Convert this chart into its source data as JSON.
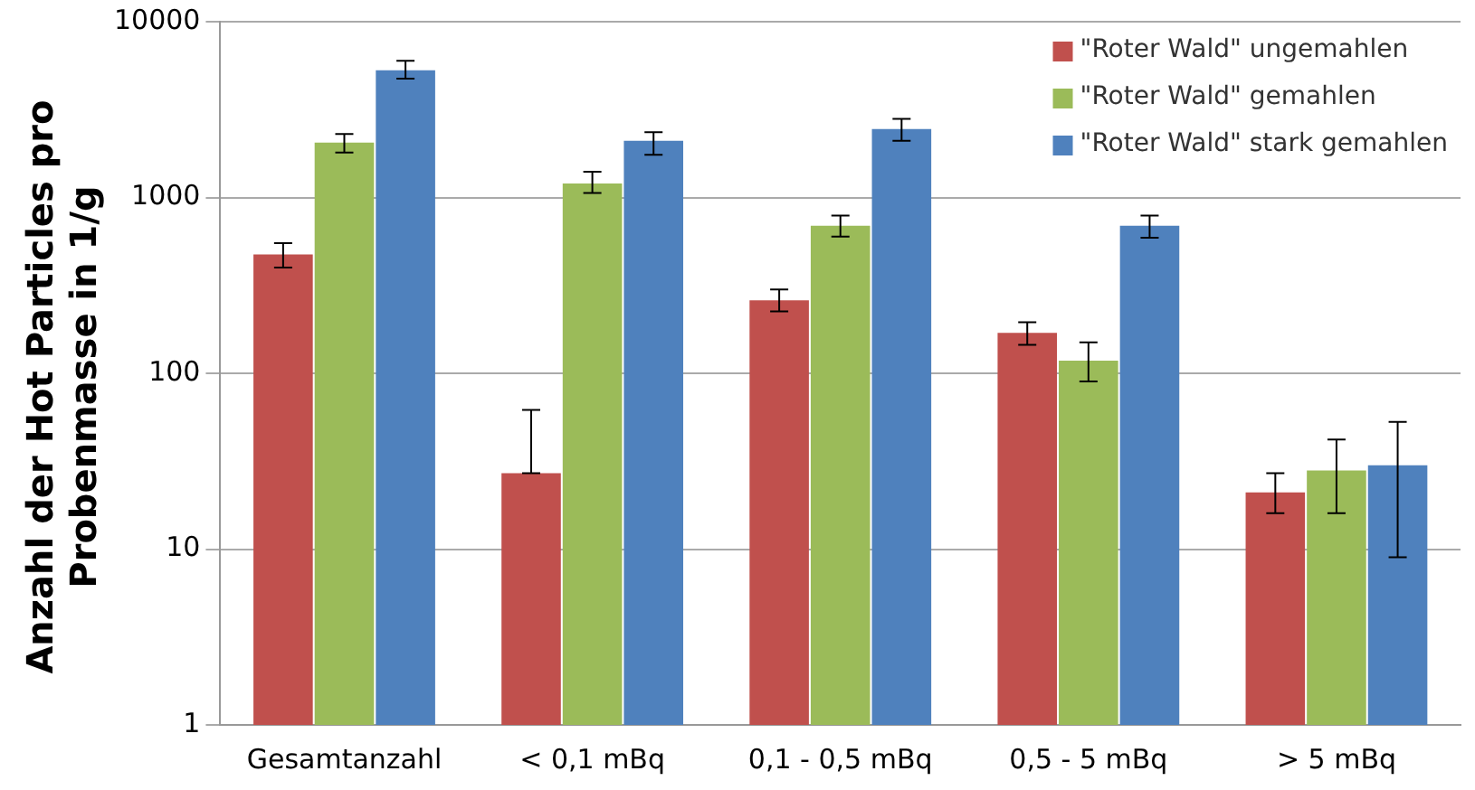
{
  "chart_data": {
    "type": "bar",
    "ylabel": "Anzahl der Hot Particles pro Probenmasse in 1/g",
    "categories": [
      "Gesamtanzahl",
      "< 0,1 mBq",
      "0,1 - 0,5 mBq",
      "0,5 - 5 mBq",
      "> 5 mBq"
    ],
    "series": [
      {
        "name": "\"Roter Wald\" ungemahlen",
        "color": "#c0504d",
        "values": [
          475,
          27,
          260,
          170,
          21
        ],
        "errors": [
          [
            400,
            550
          ],
          [
            27,
            62
          ],
          [
            225,
            300
          ],
          [
            145,
            195
          ],
          [
            16,
            27
          ]
        ]
      },
      {
        "name": "\"Roter Wald\" gemahlen",
        "color": "#9bbb59",
        "values": [
          2050,
          1200,
          690,
          118,
          28
        ],
        "errors": [
          [
            1800,
            2300
          ],
          [
            1060,
            1400
          ],
          [
            600,
            790
          ],
          [
            90,
            150
          ],
          [
            16,
            42
          ]
        ]
      },
      {
        "name": "\"Roter Wald\" stark gemahlen",
        "color": "#4f81bd",
        "values": [
          5300,
          2100,
          2450,
          690,
          30
        ],
        "errors": [
          [
            4750,
            6000
          ],
          [
            1750,
            2350
          ],
          [
            2100,
            2800
          ],
          [
            590,
            790
          ],
          [
            9,
            53
          ]
        ]
      }
    ],
    "log": "y",
    "ylim": [
      1,
      10000
    ],
    "yticks": [
      1,
      10,
      100,
      1000,
      10000
    ],
    "grid": "y",
    "legend": "top right"
  }
}
